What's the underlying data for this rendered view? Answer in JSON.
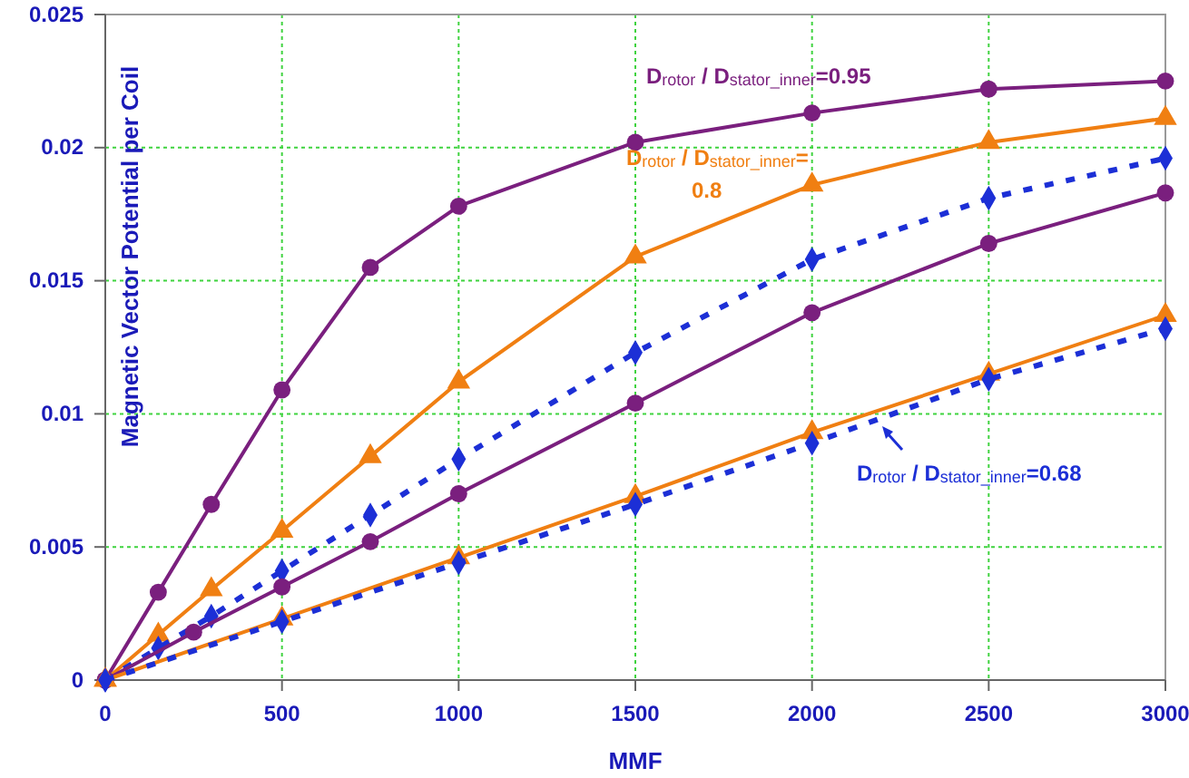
{
  "chart_data": {
    "type": "line",
    "xlabel": "MMF",
    "ylabel": "Magnetic Vector Potential per Coil",
    "xlim": [
      0,
      3000
    ],
    "xticks": [
      0,
      500,
      1000,
      1500,
      2000,
      2500,
      3000
    ],
    "ylim": [
      0,
      0.025
    ],
    "yticks": [
      0,
      0.005,
      0.01,
      0.015,
      0.02,
      0.025
    ],
    "grid": true,
    "series": [
      {
        "color": "#7a1f7e",
        "marker": "circle",
        "line_style": "solid",
        "x": [
          0,
          150,
          300,
          500,
          750,
          1000,
          1500,
          2000,
          2500,
          3000
        ],
        "values": [
          0,
          0.0033,
          0.0066,
          0.0109,
          0.0155,
          0.0178,
          0.0202,
          0.0213,
          0.0222,
          0.0225
        ]
      },
      {
        "color": "#f07f12",
        "marker": "triangle",
        "line_style": "solid",
        "x": [
          0,
          150,
          300,
          500,
          750,
          1000,
          1500,
          2000,
          2500,
          3000
        ],
        "values": [
          0,
          0.0017,
          0.0034,
          0.0056,
          0.0084,
          0.0112,
          0.0159,
          0.0186,
          0.0202,
          0.0211
        ]
      },
      {
        "color": "#1c2fd6",
        "marker": "diamond",
        "line_style": "dashed",
        "x": [
          0,
          150,
          300,
          500,
          750,
          1000,
          1500,
          2000,
          2500,
          3000
        ],
        "values": [
          0,
          0.0012,
          0.0024,
          0.0041,
          0.0062,
          0.0083,
          0.0123,
          0.0158,
          0.0181,
          0.0196
        ]
      },
      {
        "color": "#7a1f7e",
        "marker": "circle",
        "line_style": "solid",
        "x": [
          0,
          250,
          500,
          750,
          1000,
          1500,
          2000,
          2500,
          3000
        ],
        "values": [
          0,
          0.0018,
          0.0035,
          0.0052,
          0.007,
          0.0104,
          0.0138,
          0.0164,
          0.0183
        ]
      },
      {
        "color": "#f07f12",
        "marker": "triangle",
        "line_style": "solid",
        "x": [
          0,
          500,
          1000,
          1500,
          2000,
          2500,
          3000
        ],
        "values": [
          0,
          0.0023,
          0.0046,
          0.0069,
          0.0093,
          0.0115,
          0.0137
        ]
      },
      {
        "color": "#1c2fd6",
        "marker": "diamond",
        "line_style": "dashed",
        "x": [
          0,
          500,
          1000,
          1500,
          2000,
          2500,
          3000
        ],
        "values": [
          0,
          0.0022,
          0.0044,
          0.0066,
          0.0089,
          0.0113,
          0.0132
        ]
      }
    ],
    "annotations": [
      "D$_{rotor}$ / D$_{stator_inner}$=0.95",
      "D$_{rotor}$ / D$_{stator_inner}$=0.8",
      "D$_{rotor}$ / D$_{stator_inner}$=0.68"
    ]
  }
}
